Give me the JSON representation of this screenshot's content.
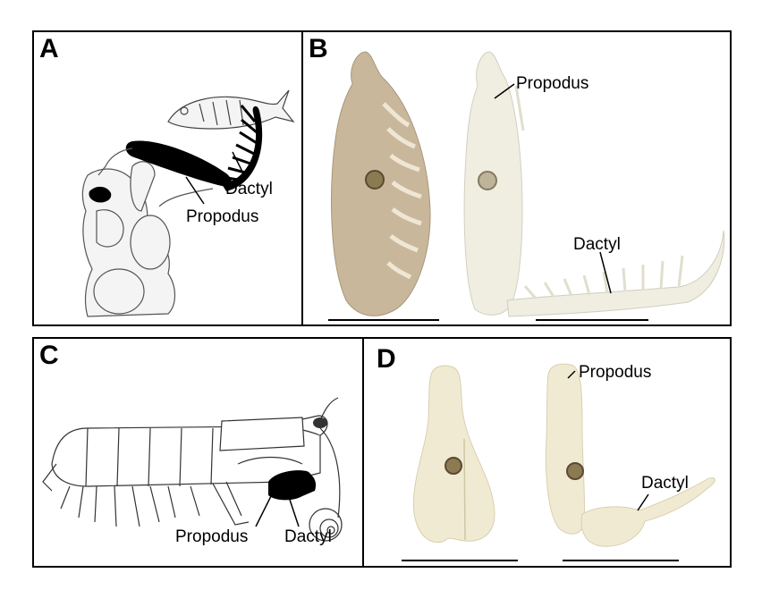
{
  "panels": {
    "a": {
      "letter": "A",
      "labels": {
        "dactyl": "Dactyl",
        "propodus": "Propodus"
      }
    },
    "b": {
      "letter": "B",
      "labels": {
        "propodus": "Propodus",
        "dactyl": "Dactyl"
      }
    },
    "c": {
      "letter": "C",
      "labels": {
        "propodus": "Propodus",
        "dactyl": "Dactyl"
      }
    },
    "d": {
      "letter": "D",
      "labels": {
        "propodus": "Propodus",
        "dactyl": "Dactyl"
      }
    }
  },
  "colors": {
    "model_tan": "#c9b79c",
    "model_white": "#efeee0",
    "model_cream": "#f1ead3",
    "ink": "#000000"
  }
}
